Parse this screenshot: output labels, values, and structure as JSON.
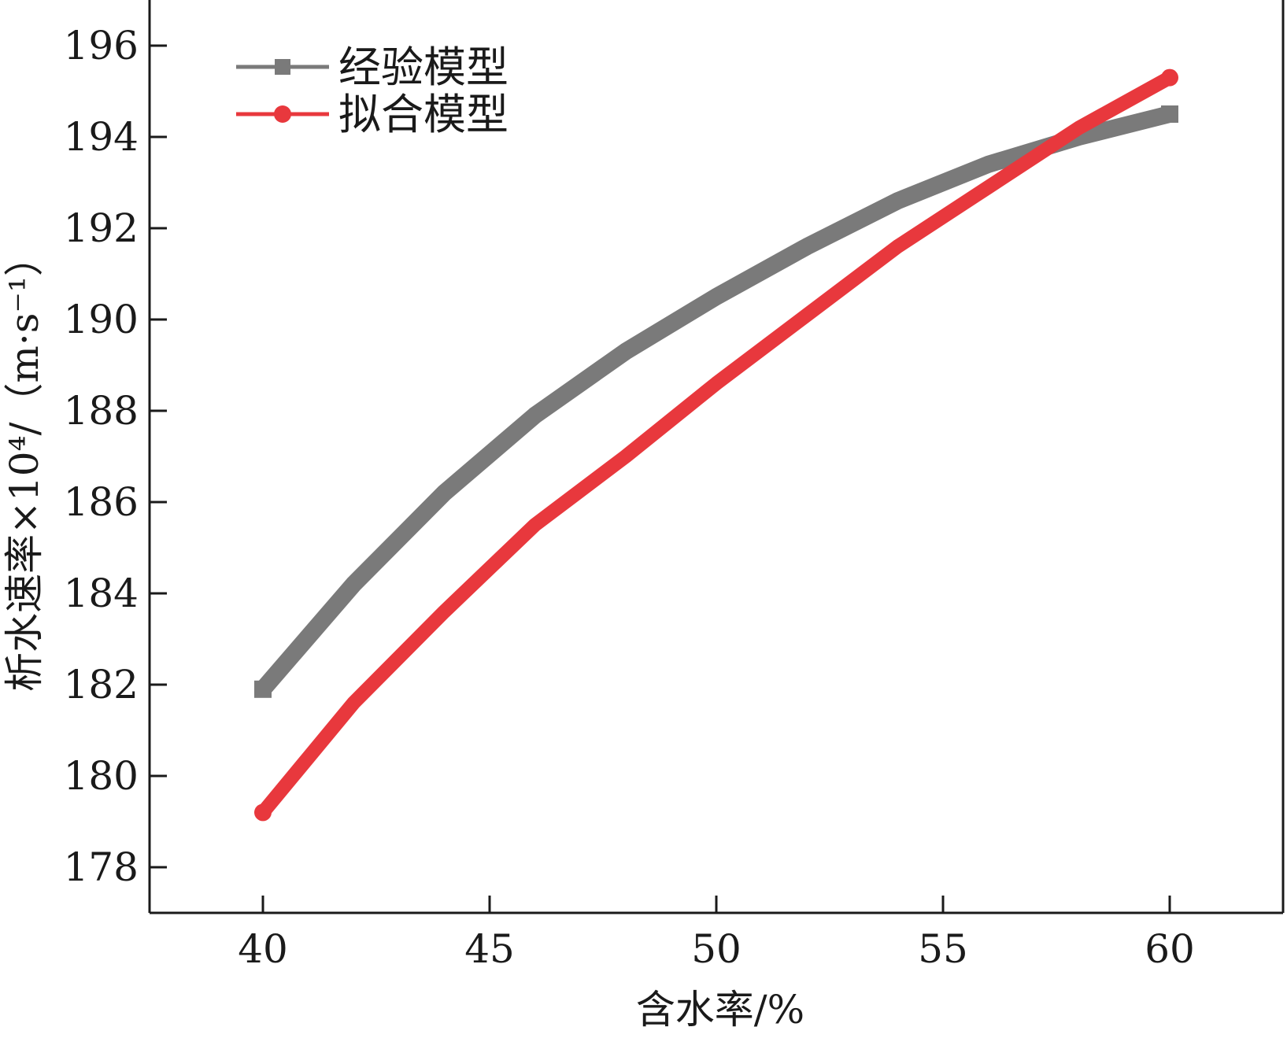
{
  "chart_data": {
    "type": "line",
    "xlabel": "含水率/%",
    "ylabel": "析水速率×10⁴/（m·s⁻¹）",
    "xlim": [
      37.5,
      62.5
    ],
    "ylim": [
      177,
      197
    ],
    "xticks": [
      40,
      45,
      50,
      55,
      60
    ],
    "yticks": [
      178,
      180,
      182,
      184,
      186,
      188,
      190,
      192,
      194,
      196
    ],
    "legend_position": "top-left",
    "grid": false,
    "series": [
      {
        "name": "经验模型",
        "color": "#7a7a7a",
        "marker": "square",
        "x": [
          40,
          42,
          44,
          46,
          48,
          50,
          52,
          54,
          56,
          58,
          60
        ],
        "y": [
          181.9,
          184.2,
          186.2,
          187.9,
          189.3,
          190.5,
          191.6,
          192.6,
          193.4,
          194.0,
          194.5
        ]
      },
      {
        "name": "拟合模型",
        "color": "#e8383d",
        "marker": "circle",
        "x": [
          40,
          42,
          44,
          46,
          48,
          50,
          52,
          54,
          56,
          58,
          60
        ],
        "y": [
          179.2,
          181.6,
          183.6,
          185.5,
          187.0,
          188.6,
          190.1,
          191.6,
          192.9,
          194.2,
          195.3
        ]
      }
    ]
  }
}
